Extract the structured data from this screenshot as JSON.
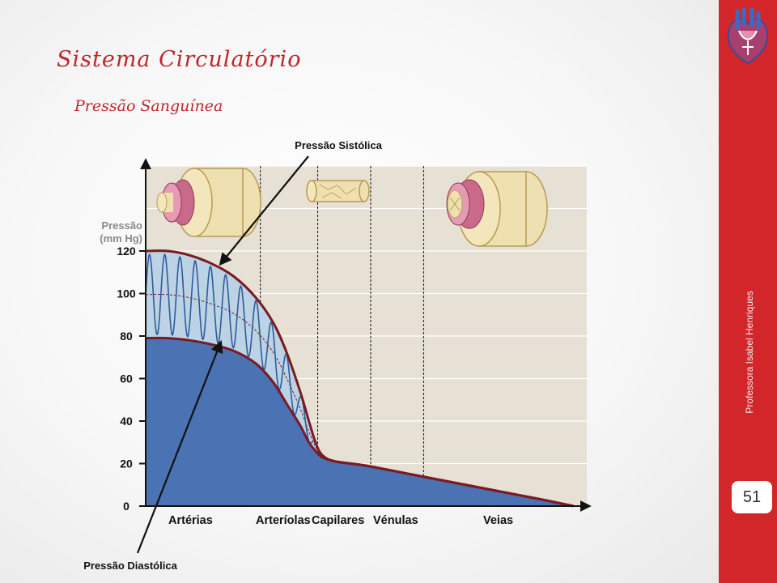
{
  "slide": {
    "title": "Sistema Circulatório",
    "subtitle": "Pressão Sanguínea",
    "author": "Professora Isabel Henriques",
    "page_number": "51"
  },
  "icons": {
    "corner": "heart-icon"
  },
  "colors": {
    "sidebar": "#d3262b",
    "title": "#c0262c",
    "diastolic_fill": "#4b72b3",
    "pulse_fill": "#bcd3e6",
    "pulse_wave": "#2e5c99",
    "pressure_curve": "#7a1a22",
    "chart_bg": "#e6e1d4"
  },
  "chart_data": {
    "type": "area",
    "ylabel": "Pressão\n(mm Hg)",
    "yticks": [
      0,
      20,
      40,
      60,
      80,
      100,
      120
    ],
    "ylim": [
      0,
      160
    ],
    "xlim": [
      0,
      10
    ],
    "regions": [
      {
        "label": "Artérias",
        "from": 0,
        "to": 2.6
      },
      {
        "label": "Arteríolas",
        "from": 2.6,
        "to": 3.9
      },
      {
        "label": "Capilares",
        "from": 3.9,
        "to": 5.1
      },
      {
        "label": "Vénulas",
        "from": 5.1,
        "to": 6.3
      },
      {
        "label": "Veias",
        "from": 6.3,
        "to": 10
      }
    ],
    "series": [
      {
        "name": "Pressão Sistólica",
        "x": [
          0,
          0.5,
          1.0,
          1.5,
          2.0,
          2.5,
          2.9,
          3.2,
          3.5,
          3.7,
          3.85,
          4.0,
          4.3,
          5.0,
          6.0,
          7.0,
          8.0,
          9.0,
          9.7
        ],
        "values": [
          120,
          120,
          118,
          114,
          108,
          98,
          86,
          72,
          54,
          40,
          30,
          24,
          21,
          19,
          15,
          11,
          7,
          3,
          0
        ]
      },
      {
        "name": "Pressão Diastólica",
        "x": [
          0,
          0.5,
          1.0,
          1.5,
          2.0,
          2.5,
          2.9,
          3.2,
          3.5,
          3.7,
          3.85,
          4.0,
          4.3,
          5.0,
          6.0,
          7.0,
          8.0,
          9.0,
          9.7
        ],
        "values": [
          79,
          79,
          78,
          76,
          73,
          67,
          58,
          48,
          38,
          30,
          26,
          23,
          21,
          19,
          15,
          11,
          7,
          3,
          0
        ]
      }
    ],
    "pulse_cycles": 11,
    "annotations": [
      {
        "text": "Pressão Sistólica",
        "target_x": 1.7,
        "target_y": 114
      },
      {
        "text": "Pressão Diastólica",
        "target_x": 1.7,
        "target_y": 77
      }
    ],
    "vessel_illustrations": [
      "artery-illustration",
      "capillary-illustration",
      "vein-illustration"
    ]
  }
}
